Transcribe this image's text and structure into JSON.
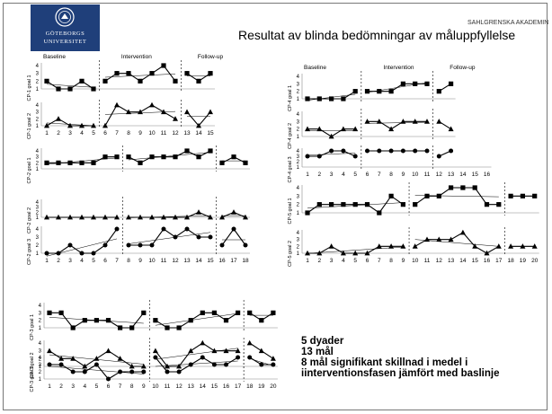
{
  "title": "Resultat av blinda bedömningar av måluppfyllelse",
  "org": "SAHLGRENSKA AKADEMIN",
  "logo": {
    "line1": "GÖTEBORGS",
    "line2": "UNIVERSITET"
  },
  "summary": [
    "5 dyader",
    "13 mål",
    "8 mål signifikant skillnad i medel i",
    "iinterventionsfasen jämfört med baslinje"
  ],
  "colors": {
    "series": "#000000",
    "trend": "#000000",
    "phase_line": "#000000",
    "background": "#ffffff"
  },
  "chart_data": [
    {
      "type": "line",
      "series_label": "CP-1 goal 1",
      "marker": "square",
      "phase_labels": [
        "Baseline",
        "Intervention",
        "Follow-up"
      ],
      "y_ticks": [
        1,
        2,
        3,
        4
      ],
      "ylim": [
        1,
        4
      ],
      "phase_breaks": [
        5,
        12
      ],
      "points": [
        [
          1,
          2
        ],
        [
          2,
          1
        ],
        [
          3,
          1
        ],
        [
          4,
          2
        ],
        [
          5,
          1
        ],
        [
          6,
          2
        ],
        [
          7,
          3
        ],
        [
          8,
          3
        ],
        [
          9,
          2
        ],
        [
          10,
          3
        ],
        [
          11,
          4
        ],
        [
          12,
          2
        ],
        [
          13,
          3
        ],
        [
          14,
          2
        ],
        [
          15,
          3
        ]
      ]
    },
    {
      "type": "line",
      "series_label": "CP-1 goal 2",
      "marker": "triangle",
      "y_ticks": [
        1,
        2,
        3,
        4
      ],
      "ylim": [
        1,
        4
      ],
      "phase_breaks": [
        5,
        12
      ],
      "x_ticks": [
        1,
        2,
        3,
        4,
        5,
        6,
        7,
        8,
        9,
        10,
        11,
        12,
        13,
        14,
        15
      ],
      "points": [
        [
          1,
          1
        ],
        [
          2,
          2
        ],
        [
          3,
          1
        ],
        [
          4,
          1
        ],
        [
          5,
          1
        ],
        [
          6,
          1
        ],
        [
          7,
          4
        ],
        [
          8,
          3
        ],
        [
          9,
          3
        ],
        [
          10,
          4
        ],
        [
          11,
          3
        ],
        [
          12,
          2
        ],
        [
          13,
          3
        ],
        [
          14,
          1
        ],
        [
          15,
          3
        ]
      ]
    },
    {
      "type": "line",
      "series_label": "CP-2 goal 1",
      "marker": "square",
      "y_ticks": [
        1,
        2,
        3,
        4
      ],
      "ylim": [
        1,
        4
      ],
      "phase_breaks": [
        7,
        15
      ],
      "points": [
        [
          1,
          2
        ],
        [
          2,
          2
        ],
        [
          3,
          2
        ],
        [
          4,
          2
        ],
        [
          5,
          2
        ],
        [
          6,
          3
        ],
        [
          7,
          3
        ],
        [
          8,
          3
        ],
        [
          9,
          2
        ],
        [
          10,
          3
        ],
        [
          11,
          3
        ],
        [
          12,
          3
        ],
        [
          13,
          4
        ],
        [
          14,
          3
        ],
        [
          15,
          4
        ],
        [
          16,
          2
        ],
        [
          17,
          3
        ],
        [
          18,
          2
        ]
      ]
    },
    {
      "type": "line",
      "series_label": "CP-2 goal 2",
      "marker": "triangle",
      "y_ticks": [
        1,
        2,
        3,
        4
      ],
      "ylim": [
        1,
        4
      ],
      "phase_breaks": [
        7,
        15
      ],
      "points": [
        [
          1,
          1
        ],
        [
          2,
          1
        ],
        [
          3,
          1
        ],
        [
          4,
          1
        ],
        [
          5,
          1
        ],
        [
          6,
          1
        ],
        [
          7,
          1
        ],
        [
          8,
          1
        ],
        [
          9,
          1
        ],
        [
          10,
          1
        ],
        [
          11,
          1
        ],
        [
          12,
          1
        ],
        [
          13,
          1
        ],
        [
          14,
          2
        ],
        [
          15,
          1
        ],
        [
          16,
          1
        ],
        [
          17,
          2
        ],
        [
          18,
          1
        ]
      ]
    },
    {
      "type": "line",
      "series_label": "CP-2 goal 3",
      "marker": "circle",
      "y_ticks": [
        1,
        2,
        3,
        4
      ],
      "ylim": [
        1,
        4
      ],
      "phase_breaks": [
        7,
        15
      ],
      "x_ticks": [
        1,
        2,
        3,
        4,
        5,
        6,
        7,
        8,
        9,
        10,
        11,
        12,
        13,
        14,
        15,
        16,
        17,
        18
      ],
      "points": [
        [
          1,
          1
        ],
        [
          2,
          1
        ],
        [
          3,
          2
        ],
        [
          4,
          1
        ],
        [
          5,
          1
        ],
        [
          6,
          2
        ],
        [
          7,
          4
        ],
        [
          8,
          2
        ],
        [
          9,
          2
        ],
        [
          10,
          2
        ],
        [
          11,
          4
        ],
        [
          12,
          3
        ],
        [
          13,
          4
        ],
        [
          14,
          3
        ],
        [
          15,
          3
        ],
        [
          16,
          2
        ],
        [
          17,
          4
        ],
        [
          18,
          2
        ]
      ]
    },
    {
      "type": "line",
      "series_label": "CP-3 goal 1",
      "marker": "square",
      "y_ticks": [
        1,
        2,
        3,
        4
      ],
      "ylim": [
        1,
        4
      ],
      "phase_breaks": [
        9,
        17
      ],
      "points": [
        [
          1,
          3
        ],
        [
          2,
          3
        ],
        [
          3,
          1
        ],
        [
          4,
          2
        ],
        [
          5,
          2
        ],
        [
          6,
          2
        ],
        [
          7,
          1
        ],
        [
          8,
          1
        ],
        [
          9,
          3
        ],
        [
          10,
          2
        ],
        [
          11,
          1
        ],
        [
          12,
          1
        ],
        [
          13,
          2
        ],
        [
          14,
          3
        ],
        [
          15,
          3
        ],
        [
          16,
          2
        ],
        [
          17,
          3
        ],
        [
          18,
          3
        ],
        [
          19,
          2
        ],
        [
          20,
          3
        ]
      ]
    },
    {
      "type": "line",
      "series_label": "CP-3 goal 2",
      "marker": "triangle",
      "y_ticks": [
        1,
        2,
        3,
        4
      ],
      "ylim": [
        1,
        4
      ],
      "phase_breaks": [
        9,
        17
      ],
      "points": [
        [
          1,
          3
        ],
        [
          2,
          2
        ],
        [
          3,
          2
        ],
        [
          4,
          1
        ],
        [
          5,
          2
        ],
        [
          6,
          3
        ],
        [
          7,
          2
        ],
        [
          8,
          1
        ],
        [
          9,
          1
        ],
        [
          10,
          3
        ],
        [
          11,
          1
        ],
        [
          12,
          1
        ],
        [
          13,
          3
        ],
        [
          14,
          4
        ],
        [
          15,
          3
        ],
        [
          16,
          3
        ],
        [
          17,
          3
        ],
        [
          18,
          4
        ],
        [
          19,
          3
        ],
        [
          20,
          2
        ]
      ]
    },
    {
      "type": "line",
      "series_label": "CP-3 goal 3",
      "marker": "circle",
      "y_ticks": [
        1,
        2,
        3,
        4
      ],
      "ylim": [
        1,
        4
      ],
      "phase_breaks": [
        9,
        17
      ],
      "x_ticks": [
        1,
        2,
        3,
        4,
        5,
        6,
        7,
        8,
        9,
        10,
        11,
        12,
        13,
        14,
        15,
        16,
        17,
        18,
        19,
        20
      ],
      "points": [
        [
          1,
          3
        ],
        [
          2,
          3
        ],
        [
          3,
          2
        ],
        [
          4,
          2
        ],
        [
          5,
          3
        ],
        [
          6,
          1
        ],
        [
          7,
          2
        ],
        [
          8,
          2
        ],
        [
          9,
          2
        ],
        [
          10,
          4
        ],
        [
          11,
          2
        ],
        [
          12,
          2
        ],
        [
          13,
          3
        ],
        [
          14,
          4
        ],
        [
          15,
          3
        ],
        [
          16,
          3
        ],
        [
          17,
          4
        ],
        [
          18,
          4
        ],
        [
          19,
          3
        ],
        [
          20,
          3
        ]
      ]
    },
    {
      "type": "line",
      "series_label": "CP-4 goal 1",
      "marker": "square",
      "phase_labels": [
        "Baseline",
        "Intervention",
        "Follow-up"
      ],
      "y_ticks": [
        1,
        2,
        3,
        4
      ],
      "ylim": [
        1,
        4
      ],
      "phase_breaks": [
        5,
        11
      ],
      "points": [
        [
          1,
          1
        ],
        [
          2,
          1
        ],
        [
          3,
          1
        ],
        [
          4,
          1
        ],
        [
          5,
          2
        ],
        [
          6,
          2
        ],
        [
          7,
          2
        ],
        [
          8,
          2
        ],
        [
          9,
          3
        ],
        [
          10,
          3
        ],
        [
          11,
          3
        ],
        [
          12,
          2
        ],
        [
          13,
          3
        ]
      ]
    },
    {
      "type": "line",
      "series_label": "CP-4 goal 2",
      "marker": "triangle",
      "y_ticks": [
        1,
        2,
        3,
        4
      ],
      "ylim": [
        1,
        4
      ],
      "phase_breaks": [
        5,
        11
      ],
      "points": [
        [
          1,
          2
        ],
        [
          2,
          2
        ],
        [
          3,
          1
        ],
        [
          4,
          2
        ],
        [
          5,
          2
        ],
        [
          6,
          3
        ],
        [
          7,
          3
        ],
        [
          8,
          2
        ],
        [
          9,
          3
        ],
        [
          10,
          3
        ],
        [
          11,
          3
        ],
        [
          12,
          3
        ],
        [
          13,
          2
        ]
      ]
    },
    {
      "type": "line",
      "series_label": "CP-4 goal 3",
      "marker": "circle",
      "y_ticks": [
        1,
        2,
        3,
        4
      ],
      "ylim": [
        1,
        4
      ],
      "phase_breaks": [
        5,
        11
      ],
      "x_ticks": [
        1,
        2,
        3,
        4,
        5,
        6,
        7,
        8,
        9,
        10,
        11,
        12,
        13,
        14,
        15,
        16
      ],
      "points": [
        [
          1,
          3
        ],
        [
          2,
          3
        ],
        [
          3,
          4
        ],
        [
          4,
          4
        ],
        [
          5,
          3
        ],
        [
          6,
          4
        ],
        [
          7,
          4
        ],
        [
          8,
          4
        ],
        [
          9,
          4
        ],
        [
          10,
          4
        ],
        [
          11,
          4
        ],
        [
          12,
          3
        ],
        [
          13,
          4
        ]
      ]
    },
    {
      "type": "line",
      "series_label": "CP-5 goal 1",
      "marker": "square",
      "y_ticks": [
        1,
        2,
        3,
        4
      ],
      "ylim": [
        1,
        4
      ],
      "phase_breaks": [
        9,
        17
      ],
      "points": [
        [
          1,
          1
        ],
        [
          2,
          2
        ],
        [
          3,
          2
        ],
        [
          4,
          2
        ],
        [
          5,
          2
        ],
        [
          6,
          2
        ],
        [
          7,
          1
        ],
        [
          8,
          3
        ],
        [
          9,
          2
        ],
        [
          10,
          2
        ],
        [
          11,
          3
        ],
        [
          12,
          3
        ],
        [
          13,
          4
        ],
        [
          14,
          4
        ],
        [
          15,
          4
        ],
        [
          16,
          2
        ],
        [
          17,
          2
        ],
        [
          18,
          3
        ],
        [
          19,
          3
        ],
        [
          20,
          3
        ]
      ]
    },
    {
      "type": "line",
      "series_label": "CP-5 goal 2",
      "marker": "triangle",
      "y_ticks": [
        1,
        2,
        3,
        4
      ],
      "ylim": [
        1,
        4
      ],
      "phase_breaks": [
        9,
        17
      ],
      "x_ticks": [
        1,
        2,
        3,
        4,
        5,
        6,
        7,
        8,
        9,
        10,
        11,
        12,
        13,
        14,
        15,
        16,
        17,
        18,
        19,
        20
      ],
      "points": [
        [
          1,
          1
        ],
        [
          2,
          1
        ],
        [
          3,
          2
        ],
        [
          4,
          1
        ],
        [
          5,
          1
        ],
        [
          6,
          1
        ],
        [
          7,
          2
        ],
        [
          8,
          2
        ],
        [
          9,
          2
        ],
        [
          10,
          2
        ],
        [
          11,
          3
        ],
        [
          12,
          3
        ],
        [
          13,
          3
        ],
        [
          14,
          4
        ],
        [
          15,
          2
        ],
        [
          16,
          1
        ],
        [
          17,
          2
        ],
        [
          18,
          2
        ],
        [
          19,
          2
        ],
        [
          20,
          2
        ]
      ]
    }
  ]
}
